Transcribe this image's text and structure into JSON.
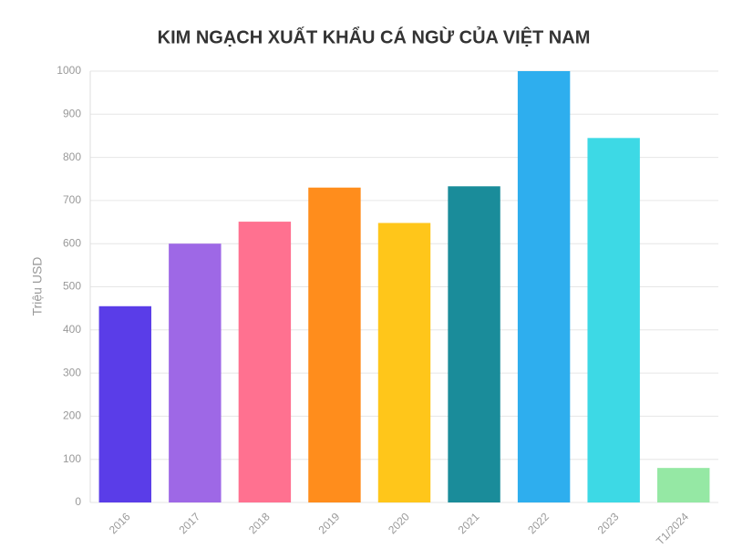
{
  "chart_data": {
    "type": "bar",
    "title": "KIM NGẠCH XUẤT KHẨU CÁ NGỪ CỦA VIỆT NAM",
    "y_label": "Triệu USD",
    "categories": [
      "2016",
      "2017",
      "2018",
      "2019",
      "2020",
      "2021",
      "2022",
      "2023",
      "T1/2024"
    ],
    "values": [
      455,
      600,
      651,
      730,
      648,
      733,
      1000,
      845,
      80
    ],
    "colors": [
      "#5a3de8",
      "#9e68e6",
      "#ff7190",
      "#ff8d1c",
      "#ffc61a",
      "#1a8c9a",
      "#2eaeee",
      "#3dd9e5",
      "#95e8a4"
    ],
    "ylim": [
      0,
      1000
    ],
    "yticks": [
      0,
      100,
      200,
      300,
      400,
      500,
      600,
      700,
      800,
      900,
      1000
    ],
    "grid": true
  }
}
